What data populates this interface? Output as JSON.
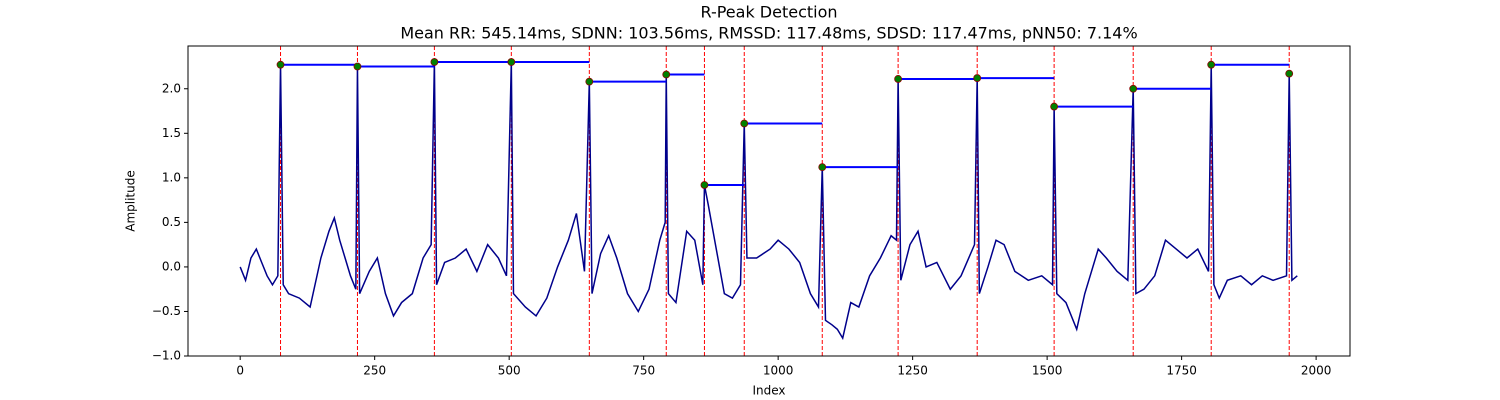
{
  "chart_data": {
    "type": "line",
    "title": "R-Peak Detection",
    "subtitle": "Mean RR: 545.14ms, SDNN: 103.56ms, RMSSD: 117.48ms, SDSD: 117.47ms, pNN50: 7.14%",
    "x_label": "Index",
    "y_label": "Amplitude",
    "xlim": [
      -97,
      2063
    ],
    "ylim": [
      -1.0,
      2.48
    ],
    "xticks": [
      0,
      250,
      500,
      750,
      1000,
      1250,
      1500,
      1750,
      2000
    ],
    "yticks": [
      {
        "value": -1.0,
        "label": "−1.0"
      },
      {
        "value": -0.5,
        "label": "−0.5"
      },
      {
        "value": 0.0,
        "label": "0.0"
      },
      0.5,
      {
        "value": 1.0,
        "label": "1.0"
      },
      1.5,
      {
        "value": 2.0,
        "label": "2.0"
      }
    ],
    "series": [
      {
        "name": "signal",
        "color": "#00008b",
        "x": [
          0,
          10,
          20,
          30,
          40,
          50,
          60,
          70,
          75,
          80,
          90,
          110,
          130,
          150,
          165,
          175,
          185,
          195,
          205,
          215,
          218,
          222,
          240,
          255,
          270,
          285,
          300,
          320,
          340,
          355,
          361,
          365,
          380,
          400,
          420,
          440,
          460,
          480,
          495,
          504,
          508,
          530,
          550,
          570,
          590,
          610,
          625,
          640,
          649,
          654,
          670,
          685,
          700,
          720,
          740,
          760,
          780,
          790,
          792,
          796,
          810,
          830,
          845,
          860,
          863,
          870,
          885,
          900,
          915,
          930,
          937,
          942,
          960,
          985,
          1000,
          1020,
          1040,
          1060,
          1075,
          1082,
          1088,
          1100,
          1110,
          1120,
          1135,
          1150,
          1170,
          1190,
          1210,
          1220,
          1223,
          1228,
          1245,
          1260,
          1275,
          1295,
          1320,
          1340,
          1365,
          1370,
          1374,
          1390,
          1405,
          1420,
          1440,
          1465,
          1490,
          1510,
          1513,
          1518,
          1535,
          1555,
          1570,
          1595,
          1610,
          1630,
          1650,
          1660,
          1665,
          1680,
          1700,
          1720,
          1740,
          1760,
          1780,
          1800,
          1805,
          1810,
          1820,
          1835,
          1860,
          1880,
          1900,
          1920,
          1945,
          1950,
          1955,
          1965
        ],
        "values": [
          0.0,
          -0.15,
          0.1,
          0.2,
          0.05,
          -0.1,
          -0.2,
          -0.1,
          2.27,
          -0.2,
          -0.3,
          -0.35,
          -0.45,
          0.1,
          0.4,
          0.55,
          0.3,
          0.1,
          -0.1,
          -0.25,
          2.25,
          -0.3,
          -0.05,
          0.1,
          -0.3,
          -0.55,
          -0.4,
          -0.3,
          0.1,
          0.25,
          2.3,
          -0.2,
          0.05,
          0.1,
          0.2,
          -0.05,
          0.25,
          0.1,
          -0.1,
          2.3,
          -0.3,
          -0.45,
          -0.55,
          -0.35,
          0.0,
          0.3,
          0.6,
          -0.05,
          2.08,
          -0.3,
          0.15,
          0.35,
          0.1,
          -0.3,
          -0.5,
          -0.25,
          0.3,
          0.5,
          2.16,
          -0.3,
          -0.4,
          0.4,
          0.3,
          -0.2,
          0.92,
          0.7,
          0.2,
          -0.3,
          -0.35,
          -0.2,
          1.61,
          0.1,
          0.1,
          0.2,
          0.3,
          0.2,
          0.05,
          -0.3,
          -0.45,
          1.12,
          -0.6,
          -0.65,
          -0.7,
          -0.8,
          -0.4,
          -0.45,
          -0.1,
          0.1,
          0.35,
          0.3,
          2.11,
          -0.15,
          0.25,
          0.4,
          0.0,
          0.05,
          -0.25,
          -0.1,
          0.25,
          2.12,
          -0.3,
          0.0,
          0.3,
          0.25,
          -0.05,
          -0.15,
          -0.1,
          -0.2,
          1.8,
          -0.3,
          -0.4,
          -0.7,
          -0.3,
          0.2,
          0.1,
          -0.05,
          -0.15,
          2.0,
          -0.3,
          -0.25,
          -0.1,
          0.3,
          0.2,
          0.1,
          0.2,
          -0.05,
          2.27,
          -0.2,
          -0.35,
          -0.15,
          -0.1,
          -0.2,
          -0.1,
          -0.15,
          -0.1,
          2.17,
          -0.15,
          -0.1
        ]
      },
      {
        "name": "peaks",
        "color": "#008000",
        "edge_color": "#8b0000",
        "line_color": "#0000ff",
        "vline_color": "#ff0000",
        "x": [
          75,
          218,
          361,
          504,
          649,
          792,
          863,
          937,
          1082,
          1223,
          1370,
          1513,
          1660,
          1805,
          1950
        ],
        "values": [
          2.27,
          2.25,
          2.3,
          2.3,
          2.08,
          2.16,
          0.92,
          1.61,
          1.12,
          2.11,
          2.12,
          1.8,
          2.0,
          2.27,
          2.17
        ]
      }
    ]
  }
}
